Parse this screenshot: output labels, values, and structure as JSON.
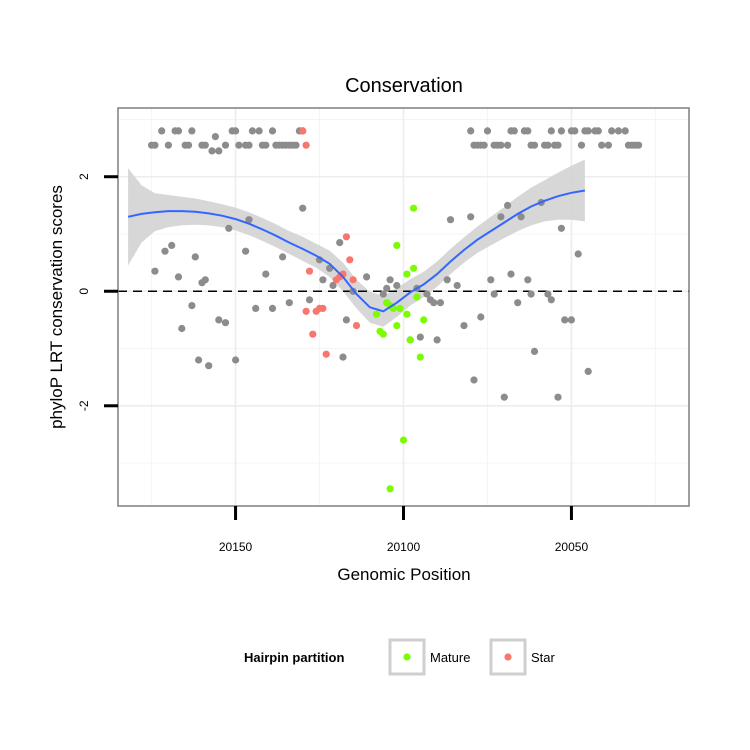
{
  "chart_data": {
    "type": "scatter",
    "title": "Conservation",
    "xlabel": "Genomic Position",
    "ylabel": "phyloP LRT conservation scores",
    "x_reversed": true,
    "xlim": [
      20185,
      20015
    ],
    "ylim": [
      -3.75,
      3.2
    ],
    "x_ticks": [
      20150,
      20100,
      20050
    ],
    "x_tick_labels": [
      "20150",
      "20100",
      "20050"
    ],
    "y_ticks": [
      -2,
      0,
      2
    ],
    "y_tick_labels": [
      "-2",
      "0",
      "2"
    ],
    "reference_line": {
      "y": 0,
      "style": "dashed"
    },
    "legend": {
      "title": "Hairpin partition",
      "position": "bottom",
      "entries": [
        {
          "label": "Mature",
          "color": "#7cfc00"
        },
        {
          "label": "Star",
          "color": "#f8766d"
        }
      ]
    },
    "colors": {
      "other": "#8c8c8c",
      "Mature": "#7cfc00",
      "Star": "#f8766d",
      "smooth": "#3366ff",
      "band": "#d3d3d3"
    },
    "series": [
      {
        "name": "Other",
        "color": "#8c8c8c",
        "points": [
          [
            20175,
            2.55
          ],
          [
            20174,
            2.55
          ],
          [
            20172,
            2.8
          ],
          [
            20170,
            2.55
          ],
          [
            20168,
            2.8
          ],
          [
            20167,
            2.8
          ],
          [
            20165,
            2.55
          ],
          [
            20164,
            2.55
          ],
          [
            20163,
            2.8
          ],
          [
            20160,
            2.55
          ],
          [
            20159,
            2.55
          ],
          [
            20157,
            2.45
          ],
          [
            20156,
            2.7
          ],
          [
            20155,
            2.45
          ],
          [
            20153,
            2.55
          ],
          [
            20151,
            2.8
          ],
          [
            20150,
            2.8
          ],
          [
            20149,
            2.55
          ],
          [
            20147,
            2.55
          ],
          [
            20146,
            2.55
          ],
          [
            20145,
            2.8
          ],
          [
            20143,
            2.8
          ],
          [
            20142,
            2.55
          ],
          [
            20141,
            2.55
          ],
          [
            20139,
            2.8
          ],
          [
            20138,
            2.55
          ],
          [
            20137,
            2.55
          ],
          [
            20136,
            2.55
          ],
          [
            20135,
            2.55
          ],
          [
            20134,
            2.55
          ],
          [
            20133,
            2.55
          ],
          [
            20132,
            2.55
          ],
          [
            20131,
            2.8
          ],
          [
            20130,
            2.8
          ],
          [
            20080,
            2.8
          ],
          [
            20079,
            2.55
          ],
          [
            20078,
            2.55
          ],
          [
            20077,
            2.55
          ],
          [
            20076,
            2.55
          ],
          [
            20075,
            2.8
          ],
          [
            20073,
            2.55
          ],
          [
            20072,
            2.55
          ],
          [
            20071,
            2.55
          ],
          [
            20069,
            2.55
          ],
          [
            20068,
            2.8
          ],
          [
            20067,
            2.8
          ],
          [
            20064,
            2.8
          ],
          [
            20063,
            2.8
          ],
          [
            20062,
            2.55
          ],
          [
            20061,
            2.55
          ],
          [
            20058,
            2.55
          ],
          [
            20057,
            2.55
          ],
          [
            20056,
            2.8
          ],
          [
            20055,
            2.55
          ],
          [
            20054,
            2.55
          ],
          [
            20053,
            2.8
          ],
          [
            20050,
            2.8
          ],
          [
            20049,
            2.8
          ],
          [
            20047,
            2.55
          ],
          [
            20046,
            2.8
          ],
          [
            20045,
            2.8
          ],
          [
            20043,
            2.8
          ],
          [
            20042,
            2.8
          ],
          [
            20041,
            2.55
          ],
          [
            20039,
            2.55
          ],
          [
            20038,
            2.8
          ],
          [
            20036,
            2.8
          ],
          [
            20034,
            2.8
          ],
          [
            20033,
            2.55
          ],
          [
            20032,
            2.55
          ],
          [
            20031,
            2.55
          ],
          [
            20030,
            2.55
          ],
          [
            20174,
            0.35
          ],
          [
            20171,
            0.7
          ],
          [
            20169,
            0.8
          ],
          [
            20167,
            0.25
          ],
          [
            20166,
            -0.65
          ],
          [
            20163,
            -0.25
          ],
          [
            20162,
            0.6
          ],
          [
            20161,
            -1.2
          ],
          [
            20160,
            0.15
          ],
          [
            20159,
            0.2
          ],
          [
            20158,
            -1.3
          ],
          [
            20155,
            -0.5
          ],
          [
            20153,
            -0.55
          ],
          [
            20152,
            1.1
          ],
          [
            20150,
            -1.2
          ],
          [
            20147,
            0.7
          ],
          [
            20146,
            1.25
          ],
          [
            20144,
            -0.3
          ],
          [
            20141,
            0.3
          ],
          [
            20139,
            -0.3
          ],
          [
            20136,
            0.6
          ],
          [
            20134,
            -0.2
          ],
          [
            20130,
            1.45
          ],
          [
            20128,
            -0.15
          ],
          [
            20125,
            0.55
          ],
          [
            20124,
            0.2
          ],
          [
            20122,
            0.4
          ],
          [
            20121,
            0.1
          ],
          [
            20119,
            0.85
          ],
          [
            20118,
            -1.15
          ],
          [
            20117,
            -0.5
          ],
          [
            20115,
            0
          ],
          [
            20111,
            0.25
          ],
          [
            20106,
            -0.05
          ],
          [
            20105,
            0.05
          ],
          [
            20104,
            0.2
          ],
          [
            20102,
            0.1
          ],
          [
            20098,
            -0.85
          ],
          [
            20096,
            0.05
          ],
          [
            20095,
            -0.8
          ],
          [
            20093,
            -0.05
          ],
          [
            20092,
            -0.15
          ],
          [
            20091,
            -0.2
          ],
          [
            20090,
            -0.85
          ],
          [
            20089,
            -0.2
          ],
          [
            20087,
            0.2
          ],
          [
            20086,
            1.25
          ],
          [
            20084,
            0.1
          ],
          [
            20082,
            -0.6
          ],
          [
            20080,
            1.3
          ],
          [
            20079,
            -1.55
          ],
          [
            20077,
            -0.45
          ],
          [
            20074,
            0.2
          ],
          [
            20073,
            -0.05
          ],
          [
            20071,
            1.3
          ],
          [
            20070,
            -1.85
          ],
          [
            20069,
            1.5
          ],
          [
            20068,
            0.3
          ],
          [
            20066,
            -0.2
          ],
          [
            20065,
            1.3
          ],
          [
            20063,
            0.2
          ],
          [
            20062,
            -0.05
          ],
          [
            20061,
            -1.05
          ],
          [
            20059,
            1.55
          ],
          [
            20057,
            -0.05
          ],
          [
            20056,
            -0.15
          ],
          [
            20054,
            -1.85
          ],
          [
            20053,
            1.1
          ],
          [
            20052,
            -0.5
          ],
          [
            20050,
            -0.5
          ],
          [
            20048,
            0.65
          ],
          [
            20045,
            -1.4
          ]
        ]
      },
      {
        "name": "Mature",
        "color": "#7cfc00",
        "points": [
          [
            20097,
            1.45
          ],
          [
            20102,
            0.8
          ],
          [
            20099,
            0.3
          ],
          [
            20097,
            0.4
          ],
          [
            20105,
            -0.2
          ],
          [
            20104,
            -0.25
          ],
          [
            20103,
            -0.3
          ],
          [
            20101,
            -0.3
          ],
          [
            20108,
            -0.4
          ],
          [
            20107,
            -0.7
          ],
          [
            20106,
            -0.75
          ],
          [
            20099,
            -0.4
          ],
          [
            20098,
            -0.85
          ],
          [
            20096,
            -0.1
          ],
          [
            20095,
            -1.15
          ],
          [
            20094,
            -0.5
          ],
          [
            20102,
            -0.6
          ],
          [
            20100,
            -2.6
          ],
          [
            20104,
            -3.45
          ]
        ]
      },
      {
        "name": "Star",
        "color": "#f8766d",
        "points": [
          [
            20130,
            2.8
          ],
          [
            20129,
            2.55
          ],
          [
            20128,
            0.35
          ],
          [
            20125,
            -0.3
          ],
          [
            20124,
            -0.3
          ],
          [
            20126,
            -0.35
          ],
          [
            20127,
            -0.75
          ],
          [
            20123,
            -1.1
          ],
          [
            20120,
            0.2
          ],
          [
            20119,
            0.25
          ],
          [
            20118,
            0.3
          ],
          [
            20117,
            0.95
          ],
          [
            20116,
            0.55
          ],
          [
            20115,
            0.2
          ],
          [
            20114,
            -0.6
          ],
          [
            20129,
            -0.35
          ]
        ]
      }
    ],
    "smooth_line": {
      "x": [
        20182,
        20178,
        20174,
        20170,
        20166,
        20162,
        20158,
        20154,
        20150,
        20146,
        20142,
        20138,
        20134,
        20130,
        20126,
        20122,
        20118,
        20114,
        20110,
        20106,
        20102,
        20098,
        20094,
        20090,
        20086,
        20082,
        20078,
        20074,
        20070,
        20066,
        20062,
        20058,
        20054,
        20050,
        20046
      ],
      "y": [
        1.3,
        1.35,
        1.38,
        1.4,
        1.4,
        1.39,
        1.36,
        1.32,
        1.26,
        1.18,
        1.08,
        0.97,
        0.85,
        0.74,
        0.62,
        0.48,
        0.25,
        -0.05,
        -0.28,
        -0.35,
        -0.2,
        -0.02,
        0.12,
        0.3,
        0.52,
        0.72,
        0.9,
        1.05,
        1.2,
        1.35,
        1.48,
        1.58,
        1.66,
        1.72,
        1.76
      ],
      "lower": [
        0.45,
        0.85,
        1.05,
        1.12,
        1.15,
        1.16,
        1.15,
        1.12,
        1.06,
        0.98,
        0.88,
        0.77,
        0.65,
        0.53,
        0.41,
        0.25,
        0.0,
        -0.3,
        -0.55,
        -0.62,
        -0.45,
        -0.25,
        -0.1,
        0.08,
        0.3,
        0.5,
        0.67,
        0.8,
        0.93,
        1.05,
        1.15,
        1.22,
        1.25,
        1.25,
        1.22
      ],
      "upper": [
        2.15,
        1.85,
        1.71,
        1.68,
        1.65,
        1.62,
        1.57,
        1.52,
        1.46,
        1.38,
        1.28,
        1.17,
        1.05,
        0.95,
        0.83,
        0.71,
        0.5,
        0.2,
        -0.01,
        -0.08,
        0.05,
        0.21,
        0.34,
        0.52,
        0.74,
        0.94,
        1.13,
        1.3,
        1.47,
        1.65,
        1.81,
        1.94,
        2.07,
        2.19,
        2.3
      ]
    }
  }
}
